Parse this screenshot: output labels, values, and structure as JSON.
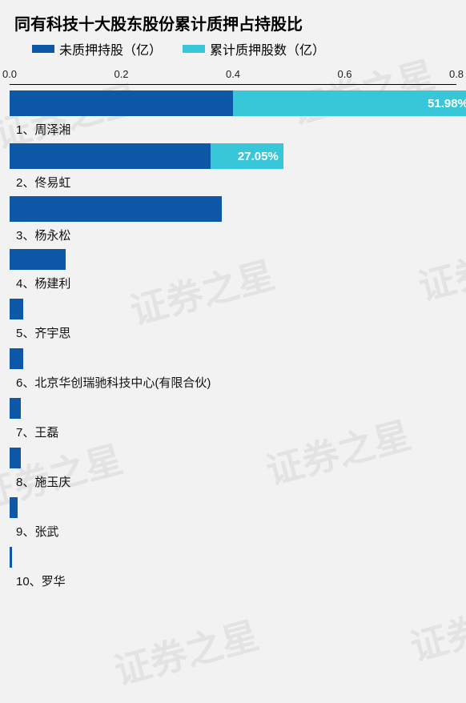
{
  "watermark_text": "证券之星",
  "title": {
    "text": "同有科技十大股东股份累计质押占持股比",
    "fontsize": 20
  },
  "legend": [
    {
      "label": "未质押持股（亿）",
      "color": "#0e58a8"
    },
    {
      "label": "累计质押股数（亿）",
      "color": "#38c7d8"
    }
  ],
  "chart": {
    "type": "bar",
    "orientation": "horizontal",
    "xlim": [
      0.0,
      0.8
    ],
    "xticks": [
      "0.0",
      "0.2",
      "0.4",
      "0.6",
      "0.8"
    ],
    "axis_label_fontsize": 13,
    "background_color": "#f2f2f2",
    "colors": {
      "unpledged": "#0e58a8",
      "pledged": "#38c7d8",
      "pct_text": "#ffffff"
    },
    "rows": [
      {
        "rank": "1",
        "name": "周泽湘",
        "unpledged": 0.4,
        "pledged": 0.43,
        "pct_label": "51.98%",
        "show_pct": true
      },
      {
        "rank": "2",
        "name": "佟易虹",
        "unpledged": 0.36,
        "pledged": 0.13,
        "pct_label": "27.05%",
        "show_pct": true
      },
      {
        "rank": "3",
        "name": "杨永松",
        "unpledged": 0.38,
        "pledged": 0.0,
        "pct_label": "",
        "show_pct": false
      },
      {
        "rank": "4",
        "name": "杨建利",
        "unpledged": 0.1,
        "pledged": 0.0,
        "pct_label": "",
        "show_pct": false
      },
      {
        "rank": "5",
        "name": "齐宇思",
        "unpledged": 0.025,
        "pledged": 0.0,
        "pct_label": "",
        "show_pct": false
      },
      {
        "rank": "6",
        "name": "北京华创瑞驰科技中心(有限合伙)",
        "unpledged": 0.025,
        "pledged": 0.0,
        "pct_label": "",
        "show_pct": false
      },
      {
        "rank": "7",
        "name": "王磊",
        "unpledged": 0.02,
        "pledged": 0.0,
        "pct_label": "",
        "show_pct": false
      },
      {
        "rank": "8",
        "name": "施玉庆",
        "unpledged": 0.02,
        "pledged": 0.0,
        "pct_label": "",
        "show_pct": false
      },
      {
        "rank": "9",
        "name": "张武",
        "unpledged": 0.015,
        "pledged": 0.0,
        "pct_label": "",
        "show_pct": false
      },
      {
        "rank": "10",
        "name": "罗华",
        "unpledged": 0.005,
        "pledged": 0.0,
        "pct_label": "",
        "show_pct": false
      }
    ]
  }
}
